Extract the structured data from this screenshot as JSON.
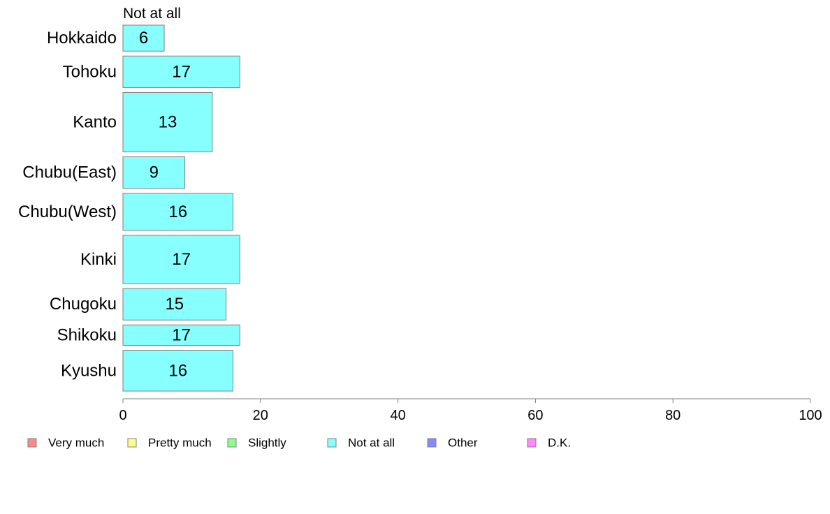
{
  "chart_data": {
    "type": "bar",
    "orientation": "horizontal",
    "title": "Not at all",
    "categories": [
      "Hokkaido",
      "Tohoku",
      "Kanto",
      "Chubu(East)",
      "Chubu(West)",
      "Kinki",
      "Chugoku",
      "Shikoku",
      "Kyushu"
    ],
    "values": [
      6,
      17,
      13,
      9,
      16,
      17,
      15,
      17,
      16
    ],
    "relative_widths": [
      0.7,
      0.85,
      1.6,
      0.85,
      1.0,
      1.3,
      0.85,
      0.55,
      1.1
    ],
    "bar_color": "#88ffff",
    "bar_edge_color": "#808080",
    "xlim": [
      0,
      100
    ],
    "xticks": [
      0,
      20,
      40,
      60,
      80,
      100
    ],
    "grid": false,
    "legend_position": "bottom",
    "legend": [
      {
        "name": "Very much",
        "color": "#ff8888"
      },
      {
        "name": "Pretty much",
        "color": "#ffff88"
      },
      {
        "name": "Slightly",
        "color": "#88ff88"
      },
      {
        "name": "Not at all",
        "color": "#88ffff"
      },
      {
        "name": "Other",
        "color": "#8888ff"
      },
      {
        "name": "D.K.",
        "color": "#ff88ff"
      }
    ]
  }
}
